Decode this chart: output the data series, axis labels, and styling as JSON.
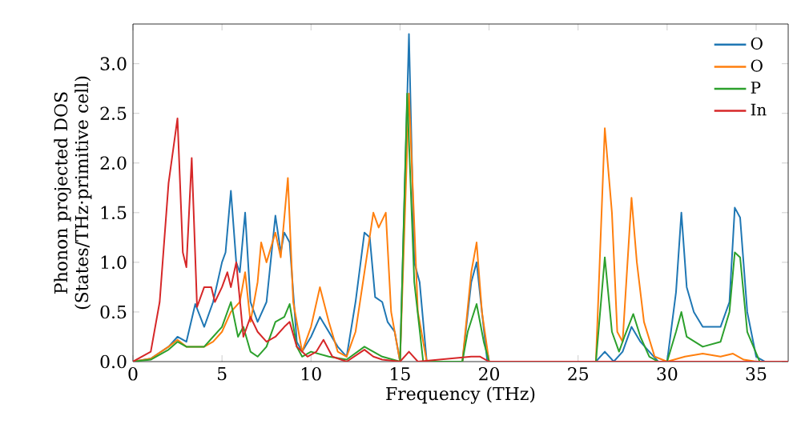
{
  "chart_data": {
    "type": "line",
    "xlabel": "Frequency (THz)",
    "ylabel": "Phonon projected DOS (States/THz·primitive cell)",
    "xlim": [
      0,
      36.8
    ],
    "ylim": [
      0,
      3.4
    ],
    "xticks": [
      0,
      5,
      10,
      15,
      20,
      25,
      30,
      35
    ],
    "yticks": [
      {
        "value": 0,
        "label": "0.0"
      },
      {
        "value": 0.5,
        "label": "0.5"
      },
      {
        "value": 1,
        "label": "1.0"
      },
      {
        "value": 1.5,
        "label": "1.5"
      },
      {
        "value": 2,
        "label": "2.0"
      },
      {
        "value": 2.5,
        "label": "2.5"
      },
      {
        "value": 3,
        "label": "3.0"
      }
    ],
    "legend": "top right",
    "grid": false,
    "marker": "none",
    "line_style": "solid",
    "series": [
      {
        "name": "O",
        "color": "#1f77b4",
        "x": [
          0,
          1,
          2,
          2.5,
          3,
          3.5,
          4,
          4.5,
          5,
          5.2,
          5.5,
          5.8,
          6,
          6.3,
          6.6,
          7,
          7.5,
          8,
          8.3,
          8.5,
          8.8,
          9.2,
          9.5,
          10,
          10.5,
          11,
          11.5,
          12,
          12.5,
          13,
          13.3,
          13.6,
          14,
          14.3,
          14.7,
          15,
          15.5,
          15.8,
          16.1,
          16.5,
          18.5,
          19,
          19.3,
          19.6,
          19.9,
          26,
          26.5,
          27,
          27.5,
          28,
          28.5,
          29,
          29.5,
          30,
          30.5,
          30.8,
          31.1,
          31.5,
          32,
          33,
          33.5,
          33.8,
          34.1,
          34.5,
          35,
          35.5,
          36.8
        ],
        "values": [
          0,
          0.03,
          0.15,
          0.25,
          0.2,
          0.58,
          0.35,
          0.6,
          1.0,
          1.1,
          1.72,
          1.0,
          0.9,
          1.5,
          0.6,
          0.4,
          0.6,
          1.47,
          1.1,
          1.3,
          1.2,
          0.2,
          0.1,
          0.25,
          0.45,
          0.3,
          0.15,
          0.05,
          0.6,
          1.3,
          1.25,
          0.65,
          0.6,
          0.4,
          0.3,
          0,
          3.3,
          1.0,
          0.8,
          0,
          0,
          0.8,
          1.0,
          0.5,
          0,
          0,
          0.1,
          0,
          0.1,
          0.35,
          0.2,
          0.1,
          0,
          0,
          0.7,
          1.5,
          0.75,
          0.5,
          0.35,
          0.35,
          0.6,
          1.55,
          1.45,
          0.5,
          0.05,
          0,
          0
        ]
      },
      {
        "name": "O",
        "color": "#ff7f0e",
        "x": [
          0,
          1,
          2,
          2.5,
          3,
          3.5,
          4,
          4.5,
          5,
          5.5,
          6,
          6.3,
          6.6,
          7,
          7.2,
          7.5,
          8,
          8.3,
          8.7,
          9,
          9.5,
          10,
          10.5,
          11,
          11.5,
          12,
          12.5,
          13,
          13.5,
          13.8,
          14.2,
          14.5,
          15,
          15.5,
          16,
          16.5,
          18.5,
          19,
          19.3,
          19.6,
          20,
          26,
          26.5,
          26.9,
          27.2,
          27.5,
          28,
          28.3,
          28.7,
          29.3,
          30,
          31,
          32,
          33,
          33.7,
          34.3,
          35,
          36.8
        ],
        "values": [
          0,
          0.03,
          0.15,
          0.22,
          0.15,
          0.15,
          0.15,
          0.2,
          0.3,
          0.5,
          0.6,
          0.9,
          0.4,
          0.8,
          1.2,
          1.0,
          1.3,
          1.05,
          1.85,
          0.6,
          0.1,
          0.35,
          0.75,
          0.4,
          0.1,
          0.05,
          0.3,
          0.9,
          1.5,
          1.35,
          1.5,
          0.5,
          0,
          2.7,
          0.5,
          0,
          0,
          0.9,
          1.2,
          0.5,
          0,
          0,
          2.35,
          1.5,
          0.3,
          0.2,
          1.65,
          1.0,
          0.4,
          0.05,
          0,
          0.05,
          0.08,
          0.05,
          0.08,
          0.02,
          0,
          0
        ]
      },
      {
        "name": "P",
        "color": "#2ca02c",
        "x": [
          0,
          1,
          2,
          2.5,
          3,
          4,
          4.5,
          5,
          5.5,
          5.9,
          6.2,
          6.6,
          7,
          7.5,
          8,
          8.5,
          8.8,
          9.2,
          9.5,
          10,
          11,
          12,
          13,
          13.5,
          14,
          15,
          15.4,
          15.8,
          16.3,
          18.5,
          18.8,
          19.3,
          19.7,
          20,
          26,
          26.5,
          26.9,
          27.3,
          27.6,
          28.1,
          28.5,
          29,
          29.5,
          30,
          30.5,
          30.8,
          31.1,
          32,
          33,
          33.5,
          33.8,
          34.1,
          34.5,
          35.2,
          36.8
        ],
        "values": [
          0,
          0.02,
          0.12,
          0.2,
          0.15,
          0.15,
          0.25,
          0.35,
          0.6,
          0.25,
          0.35,
          0.1,
          0.05,
          0.15,
          0.4,
          0.45,
          0.58,
          0.15,
          0.05,
          0.1,
          0.05,
          0.02,
          0.15,
          0.1,
          0.05,
          0,
          2.7,
          0.8,
          0,
          0,
          0.3,
          0.58,
          0.2,
          0,
          0,
          1.05,
          0.3,
          0.1,
          0.25,
          0.48,
          0.25,
          0.05,
          0,
          0,
          0.3,
          0.5,
          0.25,
          0.15,
          0.2,
          0.5,
          1.1,
          1.05,
          0.3,
          0,
          0
        ]
      },
      {
        "name": "In",
        "color": "#d62728",
        "x": [
          0,
          1,
          1.5,
          2,
          2.5,
          2.8,
          3,
          3.3,
          3.6,
          4,
          4.4,
          4.6,
          5,
          5.3,
          5.5,
          5.8,
          6.2,
          6.6,
          7,
          7.5,
          8,
          8.5,
          8.8,
          9.2,
          9.8,
          10.3,
          10.7,
          11.2,
          12,
          13,
          13.5,
          14,
          15,
          15.5,
          16,
          19,
          19.5,
          20,
          36.8
        ],
        "values": [
          0,
          0.1,
          0.6,
          1.8,
          2.45,
          1.1,
          0.95,
          2.05,
          0.55,
          0.75,
          0.75,
          0.6,
          0.75,
          0.9,
          0.75,
          1.0,
          0.25,
          0.45,
          0.3,
          0.2,
          0.25,
          0.35,
          0.4,
          0.15,
          0.05,
          0.1,
          0.22,
          0.05,
          0,
          0.12,
          0.05,
          0.02,
          0,
          0.1,
          0,
          0.05,
          0.05,
          0,
          0
        ]
      }
    ]
  }
}
